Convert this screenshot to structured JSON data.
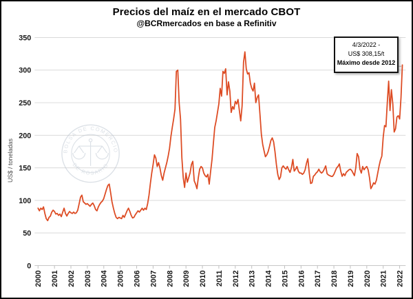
{
  "title": "Precios del maíz en el mercado CBOT",
  "subtitle": "@BCRmercados en base a Refinitiv",
  "y_axis_title": "US$ / toneladas",
  "annotation": {
    "line1": "4/3/2022 -",
    "line2": "US$ 308,15/t",
    "line3": "Máximo desde 2012"
  },
  "watermark": {
    "arc_top": "BOLSA DE COMERCIO",
    "arc_bottom": "DE ROSARIO"
  },
  "colors": {
    "line": "#DD4B23",
    "grid": "#D9D9D9",
    "axis": "#BFBFBF",
    "label": "#1A1A1A",
    "leader": "#A6A6A6",
    "watermark": "#BFC8D2"
  },
  "chart_data": {
    "type": "line",
    "title": "Precios del maíz en el mercado CBOT",
    "subtitle": "@BCRmercados en base a Refinitiv",
    "xlabel": "",
    "ylabel": "US$ / toneladas",
    "ylim": [
      0,
      350
    ],
    "y_ticks": [
      0,
      50,
      100,
      150,
      200,
      250,
      300,
      350
    ],
    "x_tick_labels": [
      "2000",
      "2001",
      "2002",
      "2003",
      "2004",
      "2005",
      "2006",
      "2007",
      "2008",
      "2009",
      "2010",
      "2011",
      "2012",
      "2013",
      "2014",
      "2015",
      "2016",
      "2017",
      "2018",
      "2019",
      "2020",
      "2021",
      "2022"
    ],
    "grid": "horizontal",
    "legend": "none",
    "annotation_point": {
      "date": "4/3/2022",
      "value": 308.15,
      "note": "Máximo desde 2012"
    },
    "series": [
      {
        "name": "Precio del maíz CBOT",
        "unit": "US$/t",
        "frequency": "monthly",
        "start": "2000-01",
        "end": "2022-03",
        "values": [
          88,
          84,
          88,
          86,
          90,
          80,
          72,
          69,
          74,
          76,
          82,
          85,
          83,
          79,
          80,
          77,
          79,
          75,
          82,
          88,
          80,
          76,
          80,
          83,
          81,
          80,
          82,
          80,
          81,
          85,
          95,
          105,
          108,
          98,
          96,
          94,
          95,
          93,
          91,
          94,
          96,
          92,
          86,
          84,
          90,
          94,
          97,
          99,
          103,
          110,
          117,
          123,
          125,
          112,
          98,
          88,
          80,
          74,
          72,
          74,
          73,
          72,
          77,
          74,
          79,
          84,
          88,
          83,
          77,
          73,
          74,
          78,
          81,
          84,
          82,
          85,
          88,
          85,
          88,
          86,
          95,
          108,
          126,
          142,
          155,
          170,
          165,
          152,
          158,
          150,
          138,
          131,
          142,
          150,
          158,
          168,
          180,
          198,
          212,
          225,
          240,
          298,
          300,
          250,
          225,
          165,
          135,
          120,
          142,
          128,
          135,
          142,
          155,
          160,
          130,
          125,
          118,
          135,
          148,
          152,
          150,
          142,
          138,
          136,
          140,
          125,
          145,
          163,
          188,
          212,
          222,
          235,
          248,
          272,
          260,
          298,
          295,
          302,
          262,
          282,
          268,
          235,
          244,
          240,
          252,
          248,
          255,
          238,
          222,
          245,
          312,
          328,
          302,
          294,
          296,
          280,
          272,
          268,
          280,
          250,
          258,
          262,
          232,
          202,
          186,
          176,
          167,
          170,
          175,
          183,
          192,
          196,
          190,
          175,
          155,
          140,
          132,
          136,
          150,
          153,
          150,
          148,
          152,
          147,
          143,
          150,
          163,
          145,
          148,
          152,
          145,
          142,
          142,
          140,
          142,
          147,
          157,
          164,
          142,
          126,
          127,
          137,
          139,
          142,
          144,
          148,
          144,
          142,
          144,
          148,
          153,
          141,
          139,
          138,
          137,
          137,
          140,
          145,
          150,
          152,
          156,
          145,
          137,
          141,
          138,
          143,
          145,
          147,
          148,
          146,
          142,
          138,
          150,
          172,
          167,
          148,
          142,
          152,
          147,
          150,
          152,
          147,
          135,
          118,
          122,
          127,
          125,
          131,
          142,
          153,
          162,
          168,
          197,
          215,
          213,
          250,
          283,
          238,
          270,
          248,
          205,
          210,
          228,
          230,
          225,
          258,
          308
        ]
      }
    ]
  }
}
